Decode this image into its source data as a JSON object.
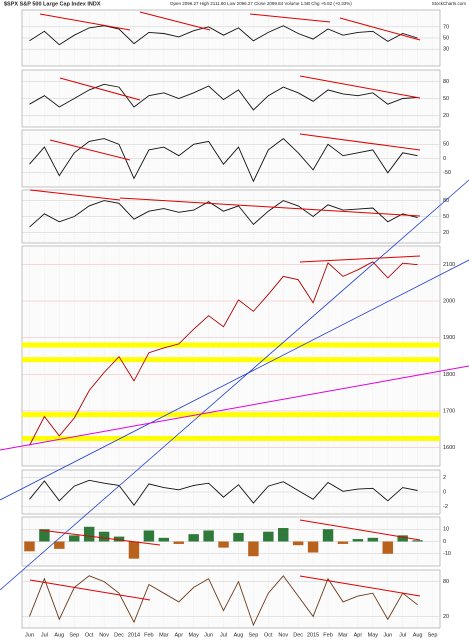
{
  "chart_data": [
    {
      "type": "line",
      "title": "$SPX S&P 500 Large Cap Index INDX",
      "subtitle": "Open 2096.27 High 2111.80 Low 2096.27 Close 2099.84 Volume 1.5B Chg +6.82 (+0.33%)",
      "source": "StockCharts.com",
      "categories": [
        "Jun",
        "Jul",
        "Aug",
        "Sep",
        "Oct",
        "Nov",
        "Dec",
        "2014",
        "Feb",
        "Mar",
        "Apr",
        "May",
        "Jun",
        "Jul",
        "Aug",
        "Sep",
        "Oct",
        "Nov",
        "Dec",
        "2015",
        "Feb",
        "Mar",
        "Apr",
        "May",
        "Jun",
        "Jul",
        "Aug",
        "Sep"
      ],
      "values": [
        1606,
        1685,
        1632,
        1681,
        1756,
        1805,
        1848,
        1782,
        1859,
        1872,
        1883,
        1923,
        1960,
        1930,
        2003,
        1972,
        2018,
        2067,
        2058,
        1995,
        2104,
        2067,
        2085,
        2107,
        2063,
        2103,
        2099,
        null
      ],
      "color": "#b00000",
      "ylim": [
        1550,
        2150
      ],
      "yticks": [
        1600,
        1700,
        1800,
        1900,
        2000,
        2100
      ],
      "highlight_levels": [
        1880,
        1840,
        1690,
        1625
      ],
      "highlight_color": "#ffff00",
      "grid": true
    },
    {
      "type": "line",
      "values": [
        45,
        62,
        38,
        55,
        68,
        72,
        66,
        40,
        60,
        58,
        52,
        63,
        70,
        55,
        68,
        45,
        60,
        72,
        58,
        48,
        66,
        55,
        60,
        62,
        44,
        58,
        50,
        null
      ],
      "color": "#111111",
      "ylim": [
        0,
        100
      ],
      "yticks": [
        30,
        50,
        70
      ]
    },
    {
      "type": "line",
      "values": [
        40,
        55,
        35,
        50,
        65,
        75,
        70,
        35,
        55,
        60,
        50,
        60,
        72,
        48,
        65,
        30,
        55,
        70,
        60,
        45,
        65,
        58,
        55,
        60,
        40,
        50,
        52,
        null
      ],
      "color": "#111111",
      "ylim": [
        0,
        100
      ],
      "yticks": [
        20,
        50,
        80
      ]
    },
    {
      "type": "line",
      "values": [
        -20,
        40,
        -60,
        20,
        60,
        70,
        50,
        -70,
        30,
        40,
        10,
        50,
        60,
        -20,
        40,
        -80,
        30,
        70,
        20,
        -40,
        50,
        10,
        20,
        30,
        -50,
        20,
        10,
        null
      ],
      "color": "#111111",
      "ylim": [
        -100,
        100
      ],
      "yticks": [
        -50,
        0,
        50
      ]
    },
    {
      "type": "line",
      "values": [
        30,
        55,
        40,
        50,
        70,
        80,
        75,
        45,
        60,
        65,
        58,
        62,
        78,
        60,
        70,
        35,
        60,
        80,
        70,
        50,
        72,
        62,
        64,
        66,
        40,
        55,
        48,
        null
      ],
      "color": "#111111",
      "ylim": [
        0,
        100
      ],
      "yticks": [
        20,
        50,
        80
      ]
    },
    {
      "type": "line",
      "values": [
        -1,
        1.5,
        -1.2,
        0.8,
        1.6,
        1.2,
        0.9,
        -1.8,
        1.1,
        0.6,
        0.3,
        0.9,
        1.2,
        -0.7,
        1.0,
        -1.5,
        0.8,
        1.4,
        0.2,
        -1.0,
        1.3,
        0.1,
        0.4,
        0.5,
        -1.2,
        0.6,
        0.2,
        null
      ],
      "color": "#111111",
      "ylim": [
        -3,
        3
      ],
      "yticks": [
        -2,
        0,
        2
      ]
    },
    {
      "type": "bar",
      "values": [
        -8,
        10,
        -6,
        5,
        12,
        8,
        4,
        -14,
        9,
        3,
        -2,
        6,
        9,
        -5,
        7,
        -12,
        8,
        11,
        -3,
        -9,
        10,
        -2,
        2,
        3,
        -10,
        5,
        1,
        null
      ],
      "colors": {
        "positive": "#2f7a3a",
        "negative": "#b8621e"
      },
      "ylim": [
        -20,
        20
      ],
      "yticks": [
        -10,
        0,
        10
      ]
    },
    {
      "type": "line",
      "values": [
        20,
        85,
        15,
        70,
        90,
        80,
        60,
        10,
        75,
        60,
        45,
        70,
        85,
        30,
        80,
        5,
        60,
        90,
        55,
        20,
        85,
        45,
        55,
        60,
        15,
        60,
        40,
        null
      ],
      "color": "#6b3b1a",
      "ylim": [
        0,
        100
      ],
      "yticks": [
        20,
        80
      ]
    }
  ]
}
